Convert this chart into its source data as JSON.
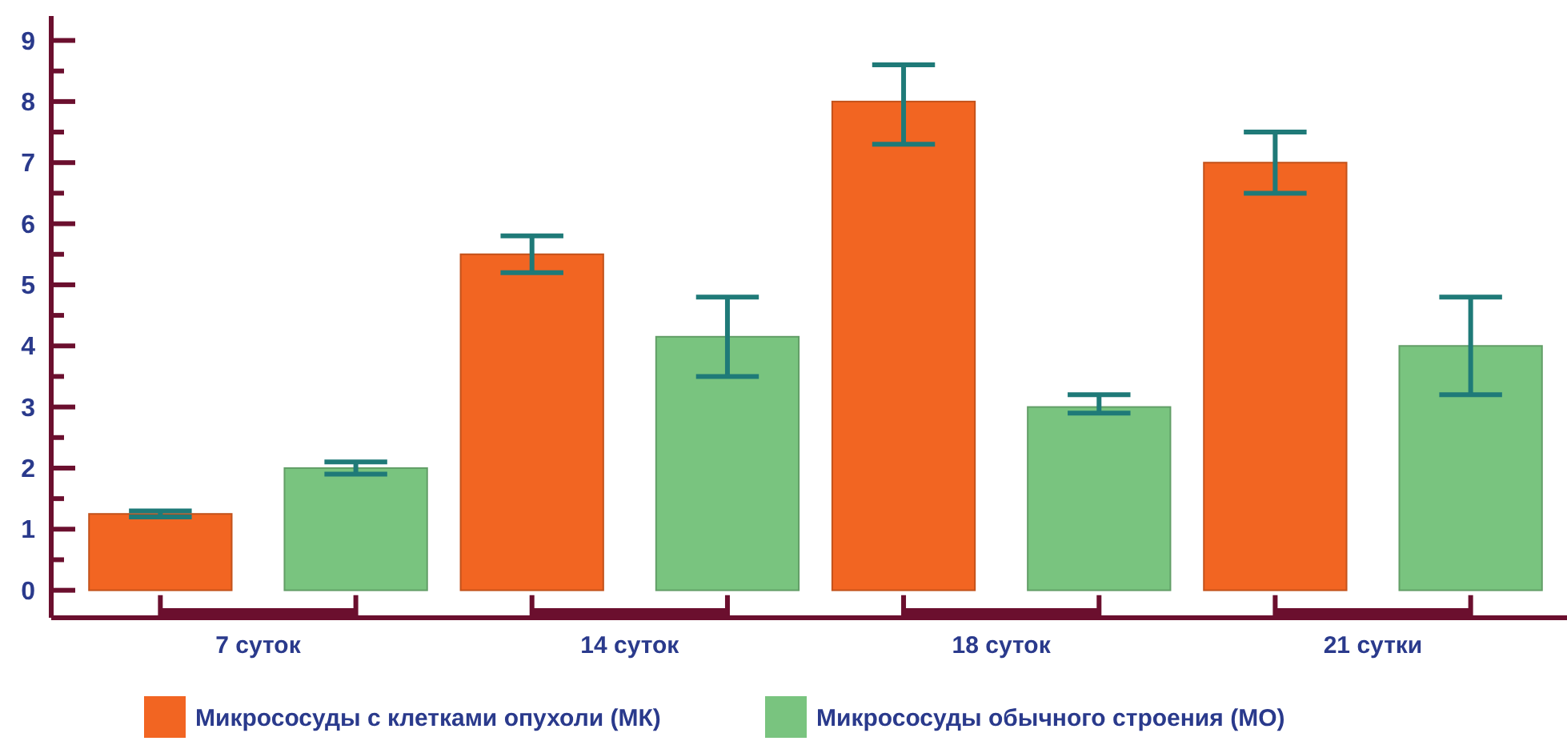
{
  "chart_data": {
    "type": "bar",
    "categories": [
      "7 суток",
      "14 суток",
      "18 суток",
      "21 сутки"
    ],
    "series": [
      {
        "name": "Микрососуды с клетками опухоли (МК)",
        "color": "#f26522",
        "values": [
          1.25,
          5.5,
          8.0,
          7.0
        ],
        "errors": [
          [
            1.2,
            1.3
          ],
          [
            5.2,
            5.8
          ],
          [
            7.3,
            8.6
          ],
          [
            6.5,
            7.5
          ]
        ]
      },
      {
        "name": "Микрососуды обычного строения (МО)",
        "color": "#79c47f",
        "values": [
          2.0,
          4.15,
          3.0,
          4.0
        ],
        "errors": [
          [
            1.9,
            2.1
          ],
          [
            3.5,
            4.8
          ],
          [
            2.9,
            3.2
          ],
          [
            3.2,
            4.8
          ]
        ]
      }
    ],
    "ylim": [
      -0.45,
      9.4
    ],
    "yticks": [
      0,
      {
        "value": 0.5,
        "label": null
      },
      1,
      {
        "value": 1.5,
        "label": null
      },
      2,
      {
        "value": 2.5,
        "label": null
      },
      3,
      {
        "value": 3.5,
        "label": null
      },
      4,
      {
        "value": 4.5,
        "label": null
      },
      5,
      {
        "value": 5.5,
        "label": null
      },
      6,
      {
        "value": 6.5,
        "label": null
      },
      7,
      {
        "value": 7.5,
        "label": null
      },
      8,
      {
        "value": 8.5,
        "label": null
      },
      9
    ],
    "grid": false,
    "legend": "bottom"
  }
}
